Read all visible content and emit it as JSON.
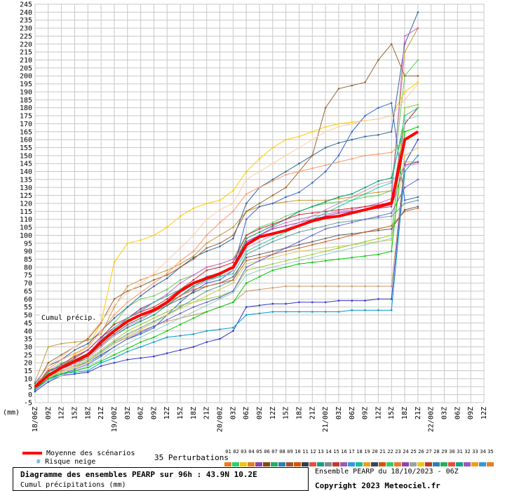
{
  "chart_data": {
    "type": "line",
    "ylim": [
      -5,
      245
    ],
    "yticks": [
      -5,
      0,
      5,
      10,
      15,
      20,
      25,
      30,
      35,
      40,
      45,
      50,
      55,
      60,
      65,
      70,
      75,
      80,
      85,
      90,
      95,
      100,
      105,
      110,
      115,
      120,
      125,
      130,
      135,
      140,
      145,
      150,
      155,
      160,
      165,
      170,
      175,
      180,
      185,
      190,
      195,
      200,
      205,
      210,
      215,
      220,
      225,
      230,
      235,
      240,
      245
    ],
    "ylabel": "(mm)",
    "xlabels": [
      "18/06Z",
      "09Z",
      "12Z",
      "15Z",
      "18Z",
      "21Z",
      "19/00Z",
      "03Z",
      "06Z",
      "09Z",
      "12Z",
      "15Z",
      "18Z",
      "21Z",
      "20/00Z",
      "03Z",
      "06Z",
      "09Z",
      "12Z",
      "15Z",
      "18Z",
      "21Z",
      "21/00Z",
      "03Z",
      "06Z",
      "09Z",
      "12Z",
      "15Z",
      "18Z",
      "21Z",
      "22/00Z",
      "03Z",
      "06Z",
      "09Z",
      "12Z"
    ],
    "annotation": "Cumul précip.",
    "mean_series": {
      "name": "Moyenne des scénarios",
      "color": "#ff0000",
      "values": [
        5,
        12,
        17,
        21,
        25,
        33,
        40,
        46,
        50,
        53,
        58,
        65,
        70,
        73,
        76,
        80,
        94,
        99,
        101,
        103,
        106,
        109,
        111,
        112,
        114,
        116,
        118,
        120,
        160,
        165
      ]
    },
    "series": [
      {
        "color": "#c89a3a",
        "values": [
          8,
          30,
          32,
          33,
          34,
          38,
          55,
          68,
          72,
          75,
          78,
          82,
          87,
          95,
          100,
          105,
          115,
          118,
          120,
          121,
          122,
          122,
          122,
          123,
          124,
          126,
          127,
          128,
          215,
          230
        ]
      },
      {
        "color": "#66cc66",
        "values": [
          6,
          15,
          20,
          22,
          25,
          35,
          45,
          55,
          60,
          62,
          66,
          72,
          75,
          80,
          82,
          85,
          100,
          105,
          108,
          112,
          115,
          118,
          120,
          121,
          122,
          124,
          125,
          128,
          200,
          210
        ]
      },
      {
        "color": "#ffcc00",
        "values": [
          4,
          10,
          18,
          25,
          30,
          45,
          83,
          95,
          97,
          100,
          105,
          112,
          117,
          120,
          122,
          128,
          140,
          148,
          155,
          160,
          162,
          165,
          168,
          170,
          171,
          172,
          173,
          175,
          190,
          196
        ]
      },
      {
        "color": "#336699",
        "values": [
          7,
          18,
          22,
          28,
          32,
          40,
          48,
          55,
          62,
          68,
          73,
          80,
          86,
          90,
          93,
          98,
          120,
          130,
          135,
          140,
          145,
          150,
          155,
          158,
          160,
          162,
          163,
          165,
          220,
          240
        ]
      },
      {
        "color": "#996633",
        "values": [
          5,
          20,
          25,
          30,
          35,
          45,
          60,
          65,
          68,
          72,
          75,
          80,
          85,
          92,
          95,
          100,
          115,
          120,
          125,
          130,
          140,
          150,
          180,
          192,
          194,
          196,
          210,
          220,
          200,
          200
        ]
      },
      {
        "color": "#cc66cc",
        "values": [
          4,
          12,
          16,
          20,
          25,
          35,
          40,
          48,
          52,
          58,
          63,
          70,
          75,
          80,
          82,
          85,
          95,
          100,
          105,
          108,
          110,
          112,
          113,
          115,
          116,
          118,
          120,
          123,
          225,
          230
        ]
      },
      {
        "color": "#3366cc",
        "values": [
          3,
          10,
          14,
          17,
          20,
          25,
          30,
          35,
          38,
          42,
          50,
          58,
          65,
          70,
          72,
          78,
          110,
          118,
          120,
          124,
          127,
          133,
          140,
          150,
          165,
          175,
          180,
          183,
          122,
          124
        ]
      },
      {
        "color": "#009966",
        "values": [
          5,
          13,
          16,
          20,
          23,
          30,
          37,
          42,
          46,
          50,
          56,
          62,
          68,
          72,
          75,
          80,
          98,
          102,
          106,
          110,
          115,
          118,
          121,
          124,
          126,
          130,
          134,
          136,
          170,
          180
        ]
      },
      {
        "color": "#cc3333",
        "values": [
          6,
          15,
          18,
          23,
          28,
          36,
          44,
          48,
          52,
          55,
          60,
          66,
          72,
          78,
          80,
          83,
          100,
          104,
          107,
          110,
          113,
          114,
          115,
          116,
          117,
          118,
          119,
          121,
          170,
          180
        ]
      },
      {
        "color": "#3333cc",
        "values": [
          2,
          8,
          12,
          13,
          14,
          18,
          20,
          22,
          23,
          24,
          26,
          28,
          30,
          33,
          35,
          40,
          55,
          56,
          57,
          57,
          58,
          58,
          58,
          59,
          59,
          59,
          60,
          60,
          145,
          160
        ]
      },
      {
        "color": "#0099cc",
        "values": [
          3,
          9,
          13,
          14,
          15,
          20,
          23,
          27,
          30,
          33,
          36,
          37,
          38,
          40,
          41,
          42,
          50,
          51,
          52,
          52,
          52,
          52,
          52,
          52,
          53,
          53,
          53,
          53,
          140,
          150
        ]
      },
      {
        "color": "#99cc33",
        "values": [
          4,
          11,
          15,
          18,
          22,
          28,
          34,
          40,
          44,
          48,
          52,
          56,
          58,
          60,
          62,
          65,
          78,
          80,
          82,
          84,
          86,
          88,
          90,
          92,
          94,
          96,
          98,
          100,
          180,
          182
        ]
      },
      {
        "color": "#cc9966",
        "values": [
          5,
          12,
          15,
          18,
          20,
          26,
          32,
          36,
          40,
          43,
          46,
          48,
          50,
          52,
          55,
          58,
          65,
          66,
          67,
          68,
          68,
          68,
          68,
          68,
          68,
          68,
          68,
          68,
          146,
          146
        ]
      },
      {
        "color": "#993399",
        "values": [
          6,
          14,
          19,
          24,
          28,
          36,
          42,
          48,
          54,
          58,
          62,
          66,
          70,
          74,
          76,
          80,
          96,
          100,
          104,
          106,
          108,
          110,
          112,
          114,
          115,
          116,
          117,
          118,
          144,
          146
        ]
      },
      {
        "color": "#669999",
        "values": [
          4,
          10,
          14,
          17,
          21,
          27,
          33,
          38,
          42,
          46,
          50,
          55,
          60,
          65,
          68,
          72,
          88,
          92,
          96,
          99,
          102,
          104,
          106,
          108,
          109,
          110,
          111,
          112,
          120,
          122
        ]
      },
      {
        "color": "#ff9966",
        "values": [
          5,
          16,
          22,
          26,
          30,
          40,
          50,
          58,
          64,
          70,
          76,
          84,
          90,
          100,
          108,
          115,
          126,
          130,
          134,
          138,
          140,
          142,
          144,
          146,
          148,
          150,
          151,
          152,
          160,
          165
        ]
      },
      {
        "color": "#ffccaa",
        "values": [
          6,
          18,
          24,
          30,
          36,
          46,
          56,
          64,
          70,
          76,
          84,
          92,
          100,
          110,
          116,
          120,
          135,
          140,
          145,
          150,
          155,
          160,
          165,
          168,
          170,
          172,
          173,
          175,
          185,
          195
        ]
      },
      {
        "color": "#99cccc",
        "values": [
          3,
          9,
          12,
          15,
          18,
          22,
          28,
          32,
          36,
          40,
          44,
          48,
          52,
          56,
          60,
          64,
          75,
          78,
          80,
          82,
          84,
          86,
          88,
          90,
          92,
          94,
          96,
          98,
          172,
          175
        ]
      },
      {
        "color": "#cccc66",
        "values": [
          4,
          11,
          14,
          17,
          20,
          26,
          32,
          37,
          41,
          45,
          50,
          54,
          58,
          62,
          66,
          70,
          82,
          84,
          86,
          88,
          90,
          91,
          92,
          93,
          94,
          95,
          96,
          97,
          150,
          155
        ]
      },
      {
        "color": "#666666",
        "values": [
          5,
          13,
          17,
          21,
          24,
          31,
          38,
          44,
          48,
          52,
          56,
          60,
          64,
          68,
          70,
          74,
          86,
          88,
          90,
          92,
          94,
          96,
          98,
          100,
          101,
          102,
          103,
          104,
          116,
          118
        ]
      },
      {
        "color": "#cc99cc",
        "values": [
          4,
          12,
          16,
          19,
          23,
          30,
          37,
          43,
          47,
          52,
          57,
          62,
          67,
          71,
          74,
          78,
          92,
          96,
          100,
          104,
          108,
          112,
          116,
          120,
          124,
          128,
          132,
          134,
          143,
          145
        ]
      },
      {
        "color": "#33cc99",
        "values": [
          5,
          14,
          18,
          22,
          26,
          34,
          42,
          48,
          53,
          58,
          62,
          66,
          70,
          72,
          74,
          76,
          90,
          94,
          98,
          102,
          106,
          110,
          114,
          118,
          122,
          126,
          130,
          133,
          175,
          180
        ]
      },
      {
        "color": "#6666cc",
        "values": [
          3,
          10,
          13,
          16,
          19,
          24,
          30,
          35,
          39,
          43,
          47,
          51,
          55,
          58,
          61,
          65,
          80,
          84,
          88,
          92,
          96,
          100,
          104,
          106,
          108,
          110,
          112,
          114,
          130,
          135
        ]
      },
      {
        "color": "#cc6633",
        "values": [
          5,
          13,
          17,
          20,
          24,
          32,
          40,
          46,
          50,
          54,
          58,
          62,
          66,
          68,
          70,
          72,
          84,
          86,
          88,
          90,
          92,
          94,
          96,
          98,
          100,
          102,
          104,
          106,
          115,
          117
        ]
      },
      {
        "color": "#00cc00",
        "values": [
          4,
          10,
          13,
          15,
          17,
          21,
          25,
          29,
          33,
          36,
          40,
          44,
          48,
          52,
          55,
          58,
          70,
          74,
          78,
          80,
          82,
          83,
          84,
          85,
          86,
          87,
          88,
          90,
          165,
          168
        ]
      }
    ]
  }
}
